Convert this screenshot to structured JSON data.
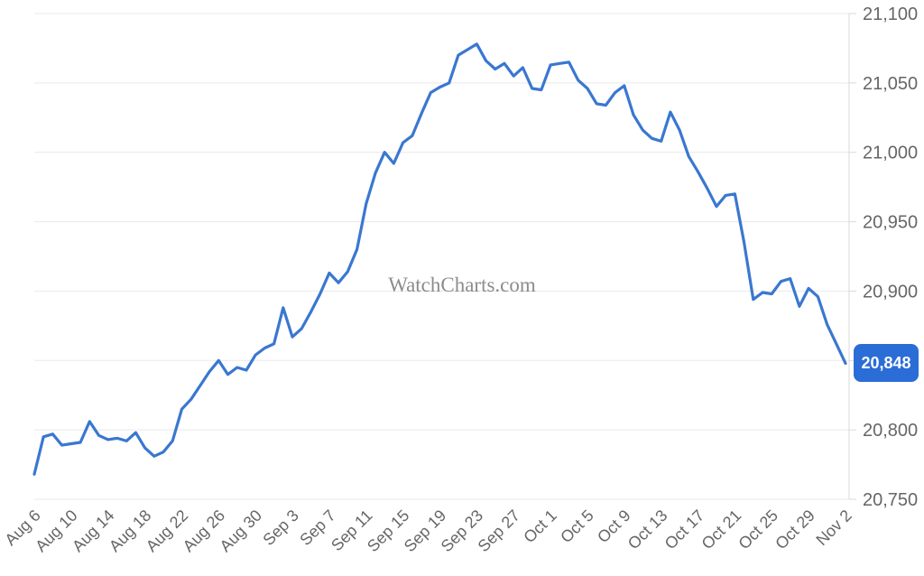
{
  "watermark": "WatchCharts.com",
  "badge": {
    "label": "20,848"
  },
  "chart_data": {
    "type": "line",
    "title": "",
    "xlabel": "",
    "ylabel": "",
    "legend_position": "none",
    "grid": "horizontal-only",
    "watermark": "WatchCharts.com",
    "ylim": [
      20750,
      21100
    ],
    "y_ticks": [
      20750,
      20800,
      20850,
      20900,
      20950,
      21000,
      21050,
      21100
    ],
    "y_tick_labels": [
      "20,750",
      "20,800",
      "20,850",
      "20,900",
      "20,950",
      "21,000",
      "21,050",
      "21,100"
    ],
    "x_tick_step": 4,
    "x_tick_labels": [
      "Aug 6",
      "Aug 10",
      "Aug 14",
      "Aug 18",
      "Aug 22",
      "Aug 26",
      "Aug 30",
      "Sep 3",
      "Sep 7",
      "Sep 11",
      "Sep 15",
      "Sep 19",
      "Sep 23",
      "Sep 27",
      "Oct 1",
      "Oct 5",
      "Oct 9",
      "Oct 13",
      "Oct 17",
      "Oct 21",
      "Oct 25",
      "Oct 29",
      "Nov 2"
    ],
    "x": [
      "Aug 6",
      "Aug 7",
      "Aug 8",
      "Aug 9",
      "Aug 10",
      "Aug 11",
      "Aug 12",
      "Aug 13",
      "Aug 14",
      "Aug 15",
      "Aug 16",
      "Aug 17",
      "Aug 18",
      "Aug 19",
      "Aug 20",
      "Aug 21",
      "Aug 22",
      "Aug 23",
      "Aug 24",
      "Aug 25",
      "Aug 26",
      "Aug 27",
      "Aug 28",
      "Aug 29",
      "Aug 30",
      "Aug 31",
      "Sep 1",
      "Sep 2",
      "Sep 3",
      "Sep 4",
      "Sep 5",
      "Sep 6",
      "Sep 7",
      "Sep 8",
      "Sep 9",
      "Sep 10",
      "Sep 11",
      "Sep 12",
      "Sep 13",
      "Sep 14",
      "Sep 15",
      "Sep 16",
      "Sep 17",
      "Sep 18",
      "Sep 19",
      "Sep 20",
      "Sep 21",
      "Sep 22",
      "Sep 23",
      "Sep 24",
      "Sep 25",
      "Sep 26",
      "Sep 27",
      "Sep 28",
      "Sep 29",
      "Sep 30",
      "Oct 1",
      "Oct 2",
      "Oct 3",
      "Oct 4",
      "Oct 5",
      "Oct 6",
      "Oct 7",
      "Oct 8",
      "Oct 9",
      "Oct 10",
      "Oct 11",
      "Oct 12",
      "Oct 13",
      "Oct 14",
      "Oct 15",
      "Oct 16",
      "Oct 17",
      "Oct 18",
      "Oct 19",
      "Oct 20",
      "Oct 21",
      "Oct 22",
      "Oct 23",
      "Oct 24",
      "Oct 25",
      "Oct 26",
      "Oct 27",
      "Oct 28",
      "Oct 29",
      "Oct 30",
      "Oct 31",
      "Nov 1",
      "Nov 2"
    ],
    "values": [
      20768,
      20795,
      20797,
      20789,
      20790,
      20791,
      20806,
      20796,
      20793,
      20794,
      20792,
      20798,
      20787,
      20781,
      20784,
      20792,
      20815,
      20822,
      20832,
      20842,
      20850,
      20840,
      20845,
      20843,
      20854,
      20859,
      20862,
      20888,
      20867,
      20873,
      20885,
      20898,
      20913,
      20906,
      20914,
      20930,
      20963,
      20985,
      21000,
      20992,
      21007,
      21012,
      21028,
      21043,
      21047,
      21050,
      21070,
      21074,
      21078,
      21066,
      21060,
      21064,
      21055,
      21061,
      21046,
      21045,
      21063,
      21064,
      21065,
      21052,
      21046,
      21035,
      21034,
      21043,
      21048,
      21027,
      21016,
      21010,
      21008,
      21029,
      21016,
      20997,
      20986,
      20974,
      20961,
      20969,
      20970,
      20935,
      20894,
      20899,
      20898,
      20907,
      20909,
      20889,
      20902,
      20896,
      20876,
      20862,
      20848
    ],
    "last_value": 20848,
    "last_value_label": "20,848",
    "colors": {
      "line": "#3a77d0",
      "badge": "#2b6dd6",
      "badge_text": "#ffffff",
      "grid": "#e9e9e9",
      "axis": "#d9d9d9",
      "tick_label": "#666666",
      "watermark": "#8c8c8c",
      "background": "#ffffff"
    }
  }
}
